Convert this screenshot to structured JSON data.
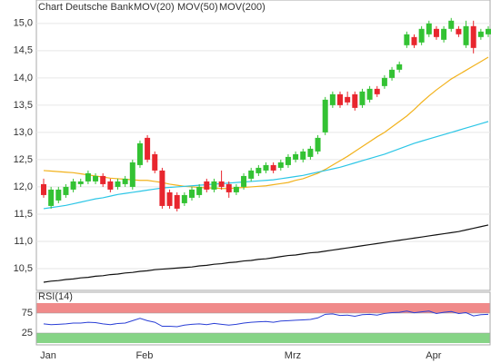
{
  "chart_data": [
    {
      "type": "candlestick",
      "title": "Chart Deutsche Bank",
      "categories": [
        "Jan",
        null,
        null,
        null,
        null,
        null,
        null,
        null,
        null,
        null,
        null,
        null,
        null,
        "Feb",
        null,
        null,
        null,
        null,
        null,
        null,
        null,
        null,
        null,
        null,
        null,
        null,
        null,
        null,
        null,
        null,
        null,
        null,
        null,
        "Mrz",
        null,
        null,
        null,
        null,
        null,
        null,
        null,
        null,
        null,
        null,
        null,
        null,
        null,
        null,
        null,
        null,
        null,
        null,
        "Apr",
        null,
        null,
        null,
        null,
        null,
        null,
        null,
        null
      ],
      "open": [
        12.05,
        11.65,
        11.75,
        11.85,
        11.95,
        12.05,
        12.1,
        12.1,
        12.2,
        12.1,
        12.0,
        12.05,
        12.0,
        12.4,
        12.9,
        12.6,
        12.3,
        11.9,
        11.85,
        11.7,
        11.8,
        11.85,
        12.1,
        11.95,
        12.1,
        12.05,
        11.9,
        12.0,
        12.15,
        12.25,
        12.3,
        12.4,
        12.35,
        12.4,
        12.5,
        12.5,
        12.55,
        12.65,
        13.0,
        13.5,
        13.7,
        13.65,
        13.7,
        13.5,
        13.6,
        13.8,
        13.85,
        14.0,
        14.15,
        14.6,
        14.75,
        14.65,
        14.8,
        14.9,
        14.7,
        14.9,
        14.9,
        14.6,
        14.95,
        14.75,
        14.8
      ],
      "high": [
        12.15,
        12.0,
        12.0,
        12.05,
        12.15,
        12.15,
        12.3,
        12.25,
        12.25,
        12.15,
        12.15,
        12.2,
        12.5,
        12.85,
        12.95,
        12.65,
        12.35,
        11.95,
        11.9,
        11.9,
        12.0,
        12.05,
        12.15,
        12.15,
        12.3,
        12.1,
        12.05,
        12.25,
        12.35,
        12.4,
        12.45,
        12.45,
        12.5,
        12.6,
        12.65,
        12.7,
        12.75,
        12.95,
        13.65,
        13.75,
        13.75,
        13.75,
        13.75,
        13.8,
        13.85,
        13.85,
        14.05,
        14.2,
        14.3,
        14.85,
        14.8,
        14.95,
        15.05,
        14.95,
        14.95,
        15.1,
        14.95,
        15.05,
        15.05,
        14.9,
        14.95
      ],
      "low": [
        11.8,
        11.6,
        11.7,
        11.8,
        11.9,
        12.0,
        12.05,
        12.05,
        12.0,
        11.9,
        11.95,
        12.0,
        11.95,
        12.35,
        12.45,
        12.25,
        11.6,
        11.6,
        11.55,
        11.65,
        11.75,
        11.8,
        11.9,
        11.9,
        11.95,
        11.8,
        11.85,
        11.95,
        12.1,
        12.2,
        12.25,
        12.25,
        12.3,
        12.35,
        12.45,
        12.45,
        12.5,
        12.6,
        12.95,
        13.45,
        13.45,
        13.5,
        13.4,
        13.45,
        13.55,
        13.65,
        13.8,
        13.95,
        14.1,
        14.55,
        14.55,
        14.6,
        14.75,
        14.7,
        14.65,
        14.85,
        14.75,
        14.55,
        14.45,
        14.7,
        14.75
      ],
      "close": [
        11.85,
        11.95,
        11.95,
        12.0,
        12.1,
        12.1,
        12.25,
        12.2,
        12.05,
        11.95,
        12.1,
        12.15,
        12.45,
        12.8,
        12.5,
        12.3,
        11.65,
        11.65,
        11.6,
        11.85,
        11.95,
        12.0,
        11.95,
        12.1,
        12.0,
        11.9,
        12.0,
        12.2,
        12.3,
        12.35,
        12.4,
        12.3,
        12.45,
        12.55,
        12.6,
        12.65,
        12.7,
        12.9,
        13.6,
        13.7,
        13.5,
        13.55,
        13.45,
        13.75,
        13.8,
        13.7,
        14.0,
        14.15,
        14.25,
        14.8,
        14.6,
        14.9,
        15.0,
        14.75,
        14.9,
        15.05,
        14.8,
        14.95,
        14.55,
        14.85,
        14.9
      ],
      "up_color": "#33c233",
      "down_color": "#e8262e",
      "series": [
        {
          "name": "MOV(20)",
          "color": "#f2b21c",
          "values": [
            12.3,
            12.29,
            12.28,
            12.27,
            12.26,
            12.24,
            12.22,
            12.2,
            12.18,
            12.16,
            12.15,
            12.14,
            12.13,
            12.12,
            12.12,
            12.1,
            12.08,
            12.05,
            12.03,
            12.01,
            12.0,
            11.99,
            11.98,
            11.98,
            11.97,
            11.97,
            11.98,
            11.99,
            12.0,
            12.01,
            12.02,
            12.04,
            12.06,
            12.08,
            12.12,
            12.15,
            12.2,
            12.25,
            12.32,
            12.4,
            12.48,
            12.56,
            12.65,
            12.74,
            12.83,
            12.92,
            13.0,
            13.1,
            13.2,
            13.3,
            13.42,
            13.55,
            13.67,
            13.78,
            13.88,
            13.98,
            14.06,
            14.14,
            14.22,
            14.3,
            14.38
          ]
        },
        {
          "name": "MOV(50)",
          "color": "#2cc6e6",
          "values": [
            11.6,
            11.62,
            11.64,
            11.66,
            11.69,
            11.72,
            11.75,
            11.78,
            11.8,
            11.83,
            11.86,
            11.88,
            11.9,
            11.92,
            11.94,
            11.96,
            11.98,
            11.99,
            12.0,
            12.01,
            12.02,
            12.03,
            12.04,
            12.05,
            12.06,
            12.07,
            12.08,
            12.09,
            12.1,
            12.11,
            12.12,
            12.13,
            12.15,
            12.17,
            12.19,
            12.21,
            12.24,
            12.27,
            12.3,
            12.33,
            12.36,
            12.4,
            12.44,
            12.48,
            12.52,
            12.56,
            12.6,
            12.65,
            12.7,
            12.75,
            12.8,
            12.84,
            12.88,
            12.92,
            12.96,
            13.0,
            13.04,
            13.08,
            13.12,
            13.16,
            13.2
          ]
        },
        {
          "name": "MOV(200)",
          "color": "#111111",
          "values": [
            10.25,
            10.27,
            10.28,
            10.3,
            10.31,
            10.33,
            10.34,
            10.36,
            10.37,
            10.39,
            10.4,
            10.42,
            10.43,
            10.45,
            10.46,
            10.48,
            10.49,
            10.5,
            10.51,
            10.52,
            10.53,
            10.55,
            10.56,
            10.58,
            10.59,
            10.61,
            10.62,
            10.64,
            10.65,
            10.67,
            10.68,
            10.7,
            10.72,
            10.74,
            10.75,
            10.77,
            10.79,
            10.8,
            10.82,
            10.84,
            10.86,
            10.88,
            10.9,
            10.92,
            10.94,
            10.96,
            10.98,
            11.0,
            11.02,
            11.04,
            11.06,
            11.08,
            11.1,
            11.12,
            11.14,
            11.16,
            11.18,
            11.21,
            11.24,
            11.27,
            11.3
          ]
        }
      ],
      "ylim": [
        10.1,
        15.43
      ],
      "yticks": [
        {
          "value": 10.5,
          "label": "10,5"
        },
        {
          "value": 11.0,
          "label": "11,0"
        },
        {
          "value": 11.5,
          "label": "11,5"
        },
        {
          "value": 12.0,
          "label": "12,0"
        },
        {
          "value": 12.5,
          "label": "12,5"
        },
        {
          "value": 13.0,
          "label": "13,0"
        },
        {
          "value": 13.5,
          "label": "13,5"
        },
        {
          "value": 14.0,
          "label": "14,0"
        },
        {
          "value": 14.5,
          "label": "14,5"
        },
        {
          "value": 15.0,
          "label": "15,0"
        }
      ],
      "grid": true
    },
    {
      "type": "line",
      "title": "RSI(14)",
      "color": "#2a3fd6",
      "values": [
        48,
        46,
        47,
        48,
        50,
        50,
        52,
        51,
        48,
        46,
        49,
        50,
        56,
        62,
        56,
        52,
        42,
        42,
        41,
        45,
        47,
        48,
        46,
        49,
        47,
        45,
        47,
        50,
        52,
        53,
        54,
        52,
        55,
        56,
        57,
        58,
        59,
        63,
        72,
        73,
        69,
        70,
        67,
        71,
        72,
        70,
        74,
        76,
        77,
        80,
        76,
        78,
        80,
        74,
        77,
        79,
        74,
        76,
        68,
        71,
        72
      ],
      "ylim": [
        0,
        100
      ],
      "yticks": [
        25,
        75
      ],
      "bands": [
        {
          "from": 75,
          "to": 100,
          "color": "#f08a8a"
        },
        {
          "from": 0,
          "to": 25,
          "color": "#86d486"
        }
      ]
    }
  ]
}
